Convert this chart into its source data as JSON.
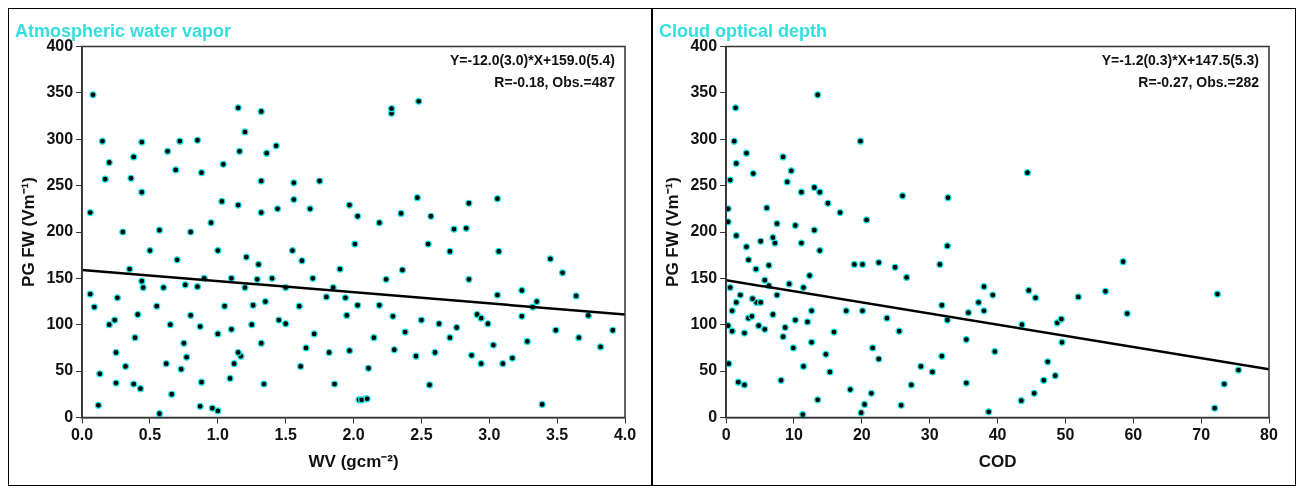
{
  "chart_data": [
    {
      "type": "scatter",
      "title": "Atmospheric water vapor",
      "xlabel": "WV (gcm⁻²)",
      "ylabel": "PG FW (Vm⁻¹)",
      "annotations": [
        "Y=-12.0(3.0)*X+159.0(5.4)",
        "R=-0.18, Obs.=487"
      ],
      "xlim": [
        0,
        4
      ],
      "ylim": [
        0,
        400
      ],
      "xticks": [
        {
          "value": 0,
          "label": "0.0"
        },
        {
          "value": 0.5,
          "label": "0.5"
        },
        {
          "value": 1,
          "label": "1.0"
        },
        {
          "value": 1.5,
          "label": "1.5"
        },
        {
          "value": 2,
          "label": "2.0"
        },
        {
          "value": 2.5,
          "label": "2.5"
        },
        {
          "value": 3,
          "label": "3.0"
        },
        {
          "value": 3.5,
          "label": "3.5"
        },
        {
          "value": 4,
          "label": "4.0"
        }
      ],
      "yticks": [
        0,
        50,
        100,
        150,
        200,
        250,
        300,
        350,
        400
      ],
      "grid": false,
      "legend": false,
      "series": [
        {
          "type": "scatter",
          "marker": "circle",
          "color": "#000000",
          "x": [
            0.08,
            0.15,
            0.12,
            0.13,
            0.06,
            0.09,
            0.06,
            0.2,
            0.17,
            0.26,
            0.25,
            0.32,
            0.36,
            0.38,
            0.44,
            0.44,
            0.43,
            0.38,
            0.39,
            0.41,
            0.44,
            0.24,
            0.57,
            0.57,
            0.63,
            0.69,
            0.72,
            0.66,
            0.62,
            0.73,
            0.76,
            0.77,
            0.85,
            0.88,
            0.87,
            0.88,
            0.87,
            0.85,
            0.96,
            1.0,
            1.03,
            1.04,
            1.15,
            1.16,
            1.2,
            1.32,
            1.32,
            1.36,
            1.43,
            1.34,
            1.32,
            1.12,
            1.17,
            1.09,
            1.26,
            1.29,
            1.21,
            1.15,
            1.32,
            1.44,
            1.5,
            1.56,
            1.56,
            1.61,
            1.75,
            1.68,
            1.86,
            1.97,
            2.03,
            1.97,
            2.04,
            2.09,
            1.62,
            1.71,
            1.82,
            1.94,
            2.28,
            2.28,
            2.48,
            2.47,
            3.06,
            2.85,
            2.74,
            2.83,
            2.35,
            2.57,
            2.19,
            3.45,
            3.54,
            3.07,
            2.71,
            2.55,
            3.64,
            3.73,
            3.91,
            3.82,
            3.66,
            3.49,
            3.39,
            2.56,
            2.06,
            2.1,
            2.11,
            2.46,
            2.6,
            2.94,
            3.1,
            3.17,
            2.87,
            3.03,
            3.28,
            3.24,
            2.99,
            2.76,
            2.5,
            2.3,
            2.15,
            2.29,
            2.19,
            2.38,
            2.91,
            3.32,
            3.35,
            2.71,
            2.63,
            3.06,
            3.24,
            2.24,
            2.36,
            2.85,
            2.94,
            2.01,
            2.03,
            0.3,
            0.35,
            0.5,
            0.55,
            0.6,
            0.65,
            0.7,
            0.8,
            0.8,
            0.9,
            0.95,
            1.0,
            1.05,
            1.1,
            1.1,
            1.2,
            1.25,
            1.3,
            1.4,
            1.45,
            1.5,
            1.55,
            1.6,
            1.7,
            1.8,
            1.9,
            1.95,
            0.2,
            0.25,
            0.45,
            0.75,
            1.0,
            1.15,
            1.35,
            1.65,
            1.85
          ],
          "values": [
            348,
            298,
            13,
            47,
            133,
            119,
            221,
            275,
            257,
            129,
            37,
            55,
            258,
            281,
            297,
            243,
            31,
            36,
            86,
            111,
            147,
            105,
            4,
            202,
            287,
            267,
            298,
            25,
            58,
            52,
            143,
            65,
            299,
            264,
            12,
            38,
            98,
            141,
            10,
            7,
            233,
            273,
            334,
            287,
            308,
            330,
            255,
            285,
            293,
            36,
            80,
            58,
            66,
            42,
            121,
            149,
            173,
            229,
            221,
            225,
            101,
            253,
            235,
            55,
            255,
            225,
            36,
            229,
            217,
            72,
            19,
            20,
            169,
            90,
            70,
            129,
            328,
            333,
            341,
            237,
            236,
            231,
            203,
            204,
            220,
            217,
            210,
            171,
            156,
            179,
            179,
            187,
            131,
            110,
            94,
            76,
            86,
            94,
            14,
            35,
            19,
            20,
            53,
            66,
            70,
            58,
            58,
            64,
            67,
            78,
            82,
            109,
            101,
            97,
            105,
            73,
            86,
            109,
            121,
            92,
            111,
            119,
            125,
            86,
            101,
            132,
            137,
            149,
            159,
            149,
            107,
            187,
            121,
            200,
            160,
            180,
            120,
            140,
            100,
            170,
            200,
            110,
            150,
            210,
            180,
            120,
            95,
            150,
            140,
            100,
            165,
            150,
            105,
            140,
            180,
            120,
            150,
            130,
            160,
            110,
            100,
            70,
            140,
            80,
            90,
            70,
            125,
            75,
            140
          ]
        },
        {
          "type": "line",
          "color": "#000000",
          "x": [
            0,
            4
          ],
          "values": [
            159,
            111
          ]
        }
      ]
    },
    {
      "type": "scatter",
      "title": "Cloud optical depth",
      "xlabel": "COD",
      "ylabel": "PG FW (Vm⁻¹)",
      "annotations": [
        "Y=-1.2(0.3)*X+147.5(5.3)",
        "R=-0.27, Obs.=282"
      ],
      "xlim": [
        0,
        80
      ],
      "ylim": [
        0,
        400
      ],
      "xticks": [
        0,
        10,
        20,
        30,
        40,
        50,
        60,
        70,
        80
      ],
      "yticks": [
        0,
        50,
        100,
        150,
        200,
        250,
        300,
        350,
        400
      ],
      "grid": false,
      "legend": false,
      "series": [
        {
          "type": "scatter",
          "marker": "circle",
          "color": "#000000",
          "x": [
            13.5,
            1.4,
            1.2,
            1.5,
            3.0,
            19.8,
            8.4,
            9.6,
            4.0,
            9.0,
            0.6,
            11.1,
            13.0,
            13.8,
            26.0,
            32.7,
            20.7,
            15.0,
            16.8,
            6.0,
            0.3,
            0.3,
            1.5,
            3.0,
            5.1,
            7.5,
            10.2,
            13.0,
            32.6,
            31.5,
            24.9,
            22.5,
            20.1,
            18.9,
            26.6,
            12.3,
            0.6,
            1.5,
            3.3,
            4.5,
            5.7,
            6.9,
            8.4,
            9.9,
            11.4,
            8.1,
            1.8,
            2.7,
            0.4,
            11.3,
            13.5,
            15.3,
            18.3,
            19.9,
            20.4,
            21.4,
            21.6,
            22.5,
            25.8,
            27.3,
            28.7,
            30.4,
            31.8,
            35.4,
            35.4,
            38.7,
            39.6,
            38.0,
            37.2,
            35.7,
            38.0,
            39.3,
            32.6,
            31.8,
            25.5,
            23.7,
            20.1,
            17.7,
            15.9,
            14.7,
            12.6,
            12.6,
            11.4,
            9.3,
            7.5,
            6.3,
            5.1,
            3.9,
            2.1,
            0.9,
            0.3,
            0.9,
            2.7,
            3.8,
            4.8,
            8.7,
            10.2,
            12.0,
            5.7,
            4.4,
            3.3,
            6.3,
            7.2,
            6.9,
            11.1,
            13.8,
            44.4,
            44.6,
            45.6,
            43.6,
            43.5,
            45.4,
            46.8,
            47.4,
            48.5,
            48.8,
            49.4,
            49.5,
            51.9,
            55.9,
            58.5,
            59.1,
            72.4,
            72.0,
            73.4,
            75.5
          ],
          "values": [
            348,
            334,
            298,
            274,
            285,
            298,
            281,
            266,
            263,
            254,
            256,
            243,
            248,
            243,
            239,
            237,
            213,
            231,
            221,
            226,
            225,
            211,
            196,
            184,
            190,
            209,
            207,
            202,
            185,
            165,
            162,
            167,
            165,
            165,
            151,
            153,
            140,
            124,
            107,
            124,
            95,
            111,
            87,
            75,
            55,
            40,
            38,
            35,
            58,
            3,
            19,
            49,
            30,
            5,
            14,
            26,
            75,
            63,
            13,
            35,
            55,
            49,
            66,
            37,
            84,
            6,
            71,
            115,
            124,
            113,
            141,
            132,
            105,
            121,
            93,
            107,
            115,
            115,
            92,
            68,
            81,
            115,
            140,
            144,
            132,
            142,
            124,
            128,
            132,
            115,
            99,
            93,
            91,
            109,
            99,
            97,
            105,
            103,
            148,
            160,
            170,
            164,
            188,
            194,
            188,
            180,
            264,
            137,
            129,
            100,
            18,
            26,
            40,
            60,
            45,
            102,
            106,
            81,
            130,
            136,
            168,
            112,
            133,
            10,
            36,
            51
          ]
        },
        {
          "type": "line",
          "color": "#000000",
          "x": [
            0,
            80
          ],
          "values": [
            148,
            52
          ]
        }
      ]
    }
  ]
}
